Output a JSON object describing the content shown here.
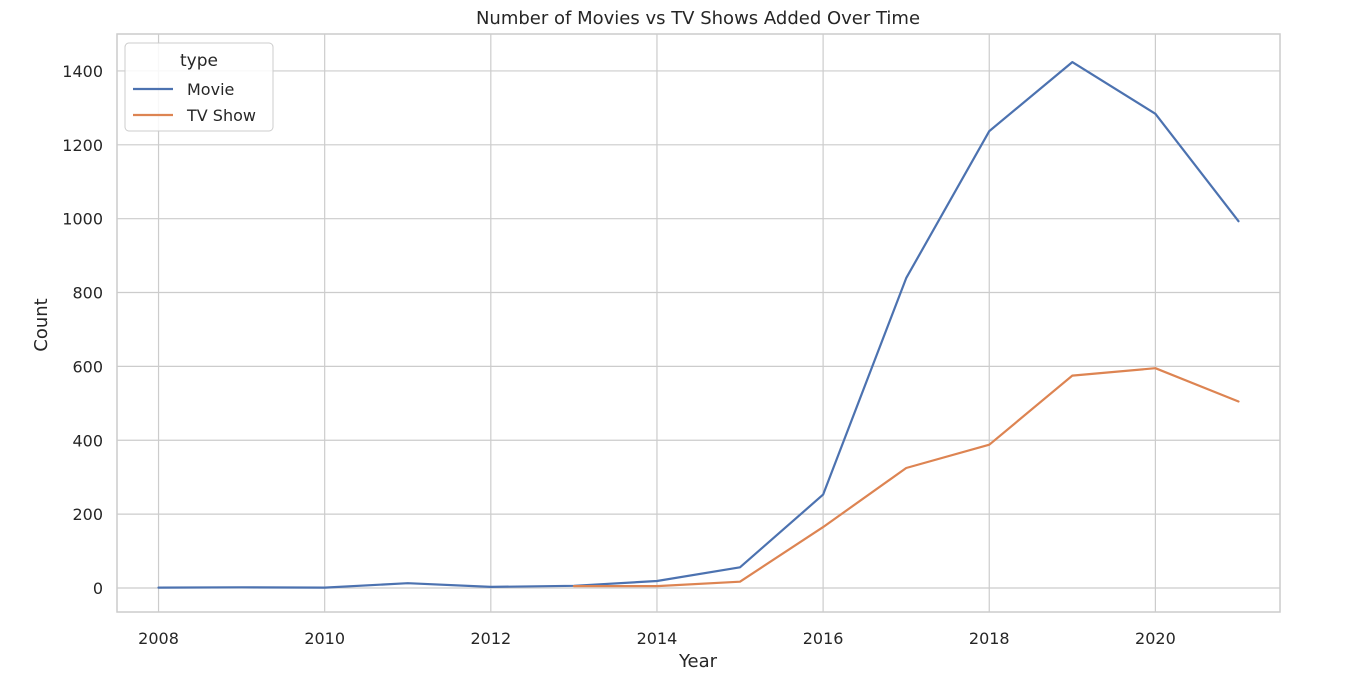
{
  "chart_data": {
    "type": "line",
    "title": "Number of Movies vs TV Shows Added Over Time",
    "xlabel": "Year",
    "ylabel": "Count",
    "xlim": [
      2007.5,
      2021.5
    ],
    "ylim": [
      -65,
      1500
    ],
    "xticks": [
      2008,
      2010,
      2012,
      2014,
      2016,
      2018,
      2020
    ],
    "yticks": [
      0,
      200,
      400,
      600,
      800,
      1000,
      1200,
      1400
    ],
    "grid": true,
    "legend": {
      "title": "type",
      "placement": "top-left"
    },
    "series": [
      {
        "name": "Movie",
        "color": "#4c72b0",
        "x": [
          2008,
          2009,
          2010,
          2011,
          2012,
          2013,
          2014,
          2015,
          2016,
          2017,
          2018,
          2019,
          2020,
          2021
        ],
        "values": [
          1,
          2,
          1,
          13,
          3,
          6,
          19,
          56,
          253,
          839,
          1237,
          1424,
          1284,
          993
        ]
      },
      {
        "name": "TV Show",
        "color": "#dd8452",
        "x": [
          2013,
          2014,
          2015,
          2016,
          2017,
          2018,
          2019,
          2020,
          2021
        ],
        "values": [
          5,
          5,
          17,
          165,
          325,
          388,
          575,
          595,
          505
        ]
      }
    ]
  }
}
